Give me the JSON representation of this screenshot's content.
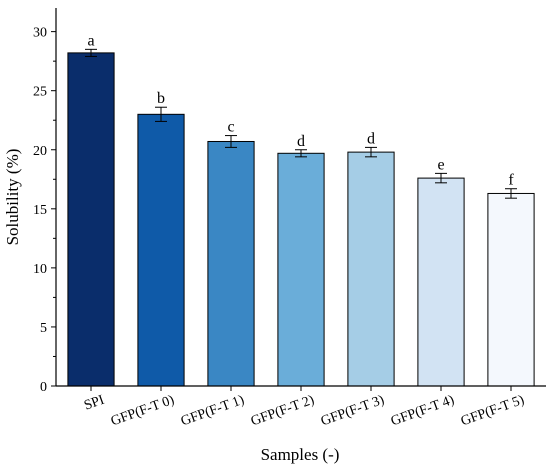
{
  "chart_data": {
    "type": "bar",
    "xlabel": "Samples (-)",
    "ylabel": "Solubility (%)",
    "ylim": [
      0,
      32
    ],
    "yticks": [
      0,
      5,
      10,
      15,
      20,
      25,
      30
    ],
    "categories": [
      "SPI",
      "GFP(F-T 0)",
      "GFP(F-T 1)",
      "GFP(F-T 2)",
      "GFP(F-T 3)",
      "GFP(F-T 4)",
      "GFP(F-T 5)"
    ],
    "values": [
      28.2,
      23.0,
      20.7,
      19.7,
      19.8,
      17.6,
      16.3
    ],
    "errors": [
      0.3,
      0.6,
      0.5,
      0.3,
      0.4,
      0.4,
      0.4
    ],
    "labels": [
      "a",
      "b",
      "c",
      "d",
      "d",
      "e",
      "f"
    ],
    "colors": [
      "#0a2d6b",
      "#0f5aa8",
      "#3a87c4",
      "#6aadd9",
      "#a5cde6",
      "#d2e3f3",
      "#f4f8fd"
    ],
    "grid": false,
    "legend": "none"
  }
}
